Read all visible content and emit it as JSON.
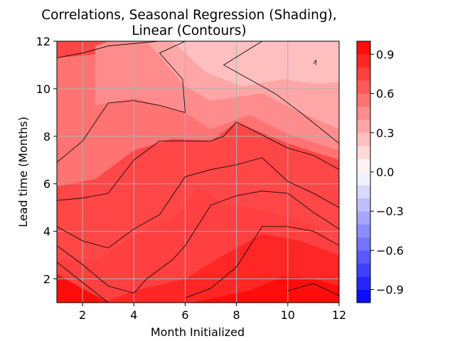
{
  "chart_data": {
    "type": "heatmap",
    "title_line1": "Correlations, Seasonal Regression (Shading),",
    "title_line2": "Linear (Contours)",
    "xlabel": "Month Initialized",
    "ylabel": "Lead time (Months)",
    "xlim": [
      1,
      12
    ],
    "ylim": [
      1,
      12
    ],
    "x_ticks": [
      2,
      4,
      6,
      8,
      10,
      12
    ],
    "y_ticks": [
      2,
      4,
      6,
      8,
      10,
      12
    ],
    "grid": true,
    "colorbar": {
      "range": [
        -1.0,
        1.0
      ],
      "levels": 20,
      "tick_values": [
        -0.9,
        -0.6,
        -0.3,
        0.0,
        0.3,
        0.6,
        0.9
      ],
      "tick_labels": [
        "−0.9",
        "−0.6",
        "−0.3",
        "0.0",
        "0.3",
        "0.6",
        "0.9"
      ],
      "colormap": "bwr"
    },
    "shading_regions": [
      {
        "level": 0.75,
        "points": [
          [
            1,
            1
          ],
          [
            12,
            1
          ],
          [
            12,
            3.3
          ],
          [
            11,
            4.3
          ],
          [
            9,
            4.9
          ],
          [
            7.5,
            5.1
          ],
          [
            6.5,
            5.8
          ],
          [
            5.5,
            4.5
          ],
          [
            4,
            3.8
          ],
          [
            2.5,
            2.8
          ],
          [
            1,
            2.8
          ]
        ]
      },
      {
        "level": 0.85,
        "points": [
          [
            2,
            1
          ],
          [
            12,
            1
          ],
          [
            12,
            3.0
          ],
          [
            10.5,
            3.6
          ],
          [
            9,
            3.9
          ],
          [
            7.5,
            3.0
          ],
          [
            6,
            2.0
          ],
          [
            4,
            1.5
          ],
          [
            2.8,
            1
          ]
        ]
      },
      {
        "level": 0.95,
        "points": [
          [
            6.2,
            1
          ],
          [
            12,
            1
          ],
          [
            12,
            1.7
          ],
          [
            11,
            2.0
          ],
          [
            9.8,
            2.1
          ],
          [
            8.5,
            1.5
          ]
        ]
      },
      {
        "level": 0.95,
        "points": [
          [
            1,
            1
          ],
          [
            3,
            1
          ],
          [
            1,
            2.2
          ]
        ]
      },
      {
        "level": 0.55,
        "points": [
          [
            1,
            5.9
          ],
          [
            2.5,
            6.2
          ],
          [
            4,
            7.4
          ],
          [
            5.5,
            7.9
          ],
          [
            7,
            7.8
          ],
          [
            8,
            8.6
          ],
          [
            10,
            7.7
          ],
          [
            12,
            7.0
          ],
          [
            12,
            10.5
          ],
          [
            9.5,
            10.8
          ],
          [
            7,
            11.5
          ],
          [
            4,
            11.6
          ],
          [
            2,
            11.4
          ],
          [
            1,
            11.3
          ]
        ]
      },
      {
        "level": 0.45,
        "points": [
          [
            2.5,
            9.3
          ],
          [
            4,
            9.6
          ],
          [
            6,
            9.0
          ],
          [
            7,
            8.3
          ],
          [
            8.5,
            8.9
          ],
          [
            10,
            8.1
          ],
          [
            12,
            7.4
          ],
          [
            12,
            11.7
          ],
          [
            10,
            11.9
          ],
          [
            6,
            12
          ],
          [
            3,
            12
          ],
          [
            2.5,
            11.8
          ]
        ]
      },
      {
        "level": 0.35,
        "points": [
          [
            4.5,
            12
          ],
          [
            6,
            10.1
          ],
          [
            7,
            9.5
          ],
          [
            9,
            9.8
          ],
          [
            10.5,
            9.0
          ],
          [
            12,
            8.3
          ],
          [
            12,
            12
          ]
        ]
      },
      {
        "level": 0.25,
        "points": [
          [
            5.5,
            12
          ],
          [
            6.8,
            10.7
          ],
          [
            8.2,
            10.1
          ],
          [
            9.8,
            10.4
          ],
          [
            11.2,
            10.2
          ],
          [
            12,
            10.3
          ],
          [
            12,
            12
          ]
        ]
      }
    ],
    "contours": [
      [
        [
          6,
          12
        ],
        [
          5,
          11.5
        ],
        [
          5.9,
          10.4
        ],
        [
          6,
          9
        ]
      ],
      [
        [
          9,
          12
        ],
        [
          7.5,
          11
        ],
        [
          9.5,
          9.8
        ],
        [
          10.5,
          9.0
        ],
        [
          12,
          7.7
        ]
      ],
      [
        [
          10.8,
          12
        ],
        [
          11.5,
          12
        ],
        [
          11.7,
          12
        ],
        [
          12,
          12.1
        ]
      ],
      [
        [
          11.0,
          11.05
        ],
        [
          11.1,
          11.2
        ],
        [
          11.1,
          11.0
        ]
      ],
      [
        [
          1,
          11.3
        ],
        [
          2,
          11.5
        ],
        [
          3,
          11.8
        ],
        [
          4,
          11.9
        ],
        [
          5,
          12.1
        ]
      ],
      [
        [
          1,
          6.9
        ],
        [
          2,
          7.8
        ],
        [
          3,
          9.4
        ],
        [
          4,
          9.5
        ],
        [
          5,
          9.3
        ],
        [
          6,
          9.0
        ]
      ],
      [
        [
          1,
          5.3
        ],
        [
          2,
          5.4
        ],
        [
          3,
          5.6
        ],
        [
          4,
          7.0
        ],
        [
          5,
          7.8
        ],
        [
          6,
          7.8
        ],
        [
          7,
          7.8
        ],
        [
          7.5,
          8.0
        ],
        [
          8,
          8.6
        ],
        [
          10,
          7.5
        ],
        [
          11,
          7.2
        ],
        [
          12,
          6.6
        ]
      ],
      [
        [
          1,
          4.2
        ],
        [
          2,
          3.6
        ],
        [
          3,
          3.3
        ],
        [
          4,
          4.1
        ],
        [
          5,
          4.7
        ],
        [
          6,
          6.3
        ],
        [
          7,
          6.6
        ],
        [
          8,
          6.8
        ],
        [
          9,
          7.1
        ],
        [
          10,
          6.1
        ],
        [
          11,
          5.6
        ],
        [
          12,
          5.0
        ]
      ],
      [
        [
          1,
          3.4
        ],
        [
          2,
          2.6
        ],
        [
          3,
          1.7
        ],
        [
          4,
          1.4
        ],
        [
          4.5,
          2.0
        ],
        [
          5,
          2.4
        ],
        [
          5.5,
          2.8
        ],
        [
          6,
          3.4
        ],
        [
          7,
          5.1
        ],
        [
          8,
          5.5
        ],
        [
          9,
          5.7
        ],
        [
          10,
          5.6
        ],
        [
          11,
          4.8
        ],
        [
          12,
          4.1
        ]
      ],
      [
        [
          1,
          2.7
        ],
        [
          3,
          1
        ]
      ],
      [
        [
          6,
          1.2
        ],
        [
          7,
          1.6
        ],
        [
          8,
          2.5
        ],
        [
          9,
          4.2
        ],
        [
          10,
          4.2
        ],
        [
          11,
          4.0
        ],
        [
          12,
          3.4
        ]
      ],
      [
        [
          10,
          1.5
        ],
        [
          11,
          1.8
        ],
        [
          12,
          1.3
        ]
      ]
    ]
  }
}
